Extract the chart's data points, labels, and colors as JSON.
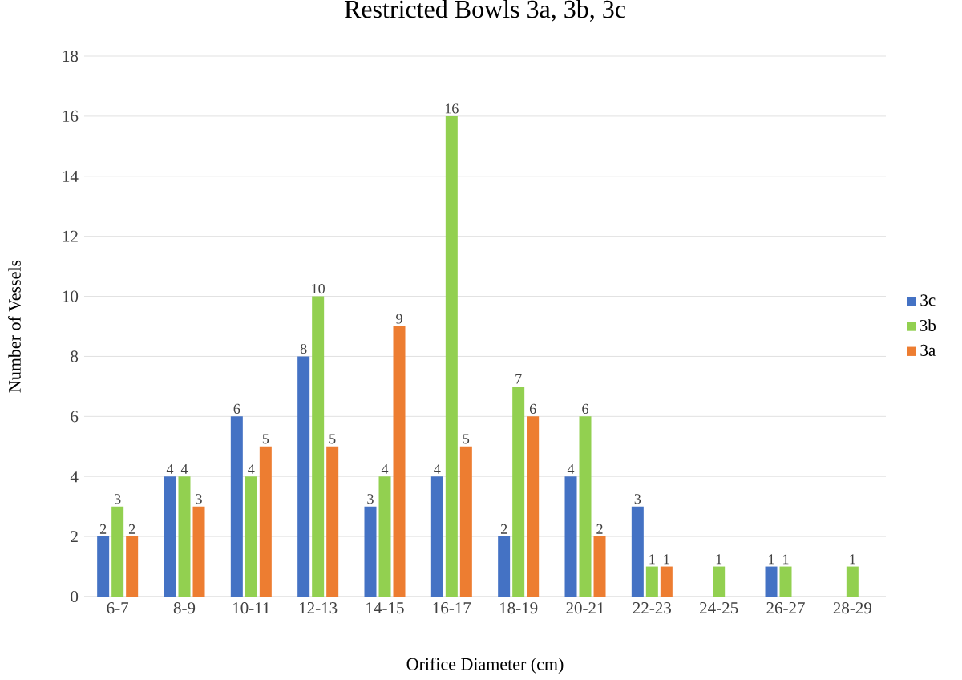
{
  "chart_data": {
    "type": "bar",
    "title": "Restricted Bowls 3a, 3b, 3c",
    "xlabel": "Orifice Diameter (cm)",
    "ylabel": "Number of Vessels",
    "categories": [
      "6-7",
      "8-9",
      "10-11",
      "12-13",
      "14-15",
      "16-17",
      "18-19",
      "20-21",
      "22-23",
      "24-25",
      "26-27",
      "28-29"
    ],
    "series": [
      {
        "name": "3c",
        "color": "#4472c4",
        "values": [
          2,
          4,
          6,
          8,
          3,
          4,
          2,
          4,
          3,
          0,
          1,
          0
        ],
        "value_labels": [
          "2",
          "4",
          "6",
          "8",
          "3",
          "4",
          "2",
          "4",
          "3",
          null,
          "1",
          null
        ]
      },
      {
        "name": "3b",
        "color": "#92d050",
        "values": [
          3,
          4,
          4,
          10,
          4,
          16,
          7,
          6,
          1,
          1,
          1,
          1
        ],
        "value_labels": [
          "3",
          "4",
          "4",
          "10",
          "4",
          "16",
          "7",
          "6",
          "1",
          "1",
          "1",
          "1"
        ]
      },
      {
        "name": "3a",
        "color": "#ed7d31",
        "values": [
          2,
          3,
          5,
          5,
          9,
          5,
          6,
          2,
          1,
          0,
          0,
          0
        ],
        "value_labels": [
          "2",
          "3",
          "5",
          "5",
          "9",
          "5",
          "6",
          "2",
          "1",
          null,
          null,
          null
        ]
      }
    ],
    "ylim": [
      0,
      18
    ],
    "yticks": [
      0,
      2,
      4,
      6,
      8,
      10,
      12,
      14,
      16,
      18
    ],
    "grid": "y",
    "legend": "right"
  }
}
